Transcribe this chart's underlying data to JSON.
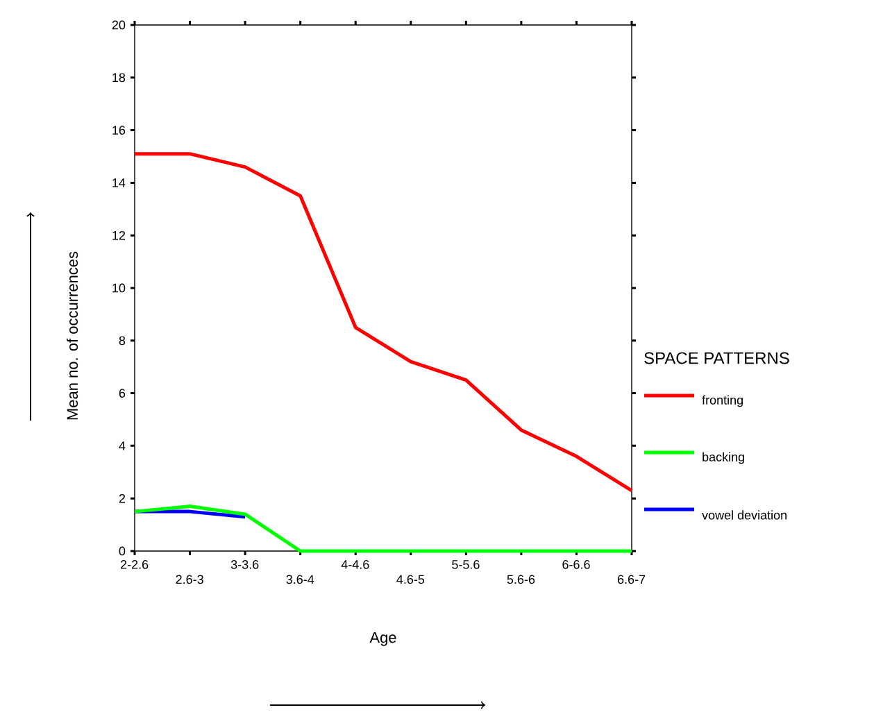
{
  "chart_data": {
    "type": "line",
    "xlabel": "Age",
    "ylabel": "Mean no. of occurrences",
    "legend_title": "SPACE PATTERNS",
    "categories": [
      "2-2.6",
      "2.6-3",
      "3-3.6",
      "3.6-4",
      "4-4.6",
      "4.6-5",
      "5-5.6",
      "5.6-6",
      "6-6.6",
      "6.6-7"
    ],
    "series": [
      {
        "name": "fronting",
        "color": "#ff0000",
        "values": [
          15.1,
          15.1,
          14.6,
          13.5,
          8.5,
          7.2,
          6.5,
          4.6,
          3.6,
          2.3
        ]
      },
      {
        "name": "backing",
        "color": "#00ff00",
        "values": [
          1.5,
          1.7,
          1.4,
          0,
          0,
          0,
          0,
          0,
          0,
          0
        ]
      },
      {
        "name": "vowel deviation",
        "color": "#0000ff",
        "values": [
          1.5,
          1.5,
          1.3,
          null,
          null,
          null,
          null,
          null,
          null,
          null
        ]
      }
    ],
    "ylim": [
      0,
      20
    ],
    "yticks": [
      0,
      2,
      4,
      6,
      8,
      10,
      12,
      14,
      16,
      18,
      20
    ],
    "legend": "right",
    "grid": false,
    "marker": "none",
    "line_style": "solid"
  }
}
